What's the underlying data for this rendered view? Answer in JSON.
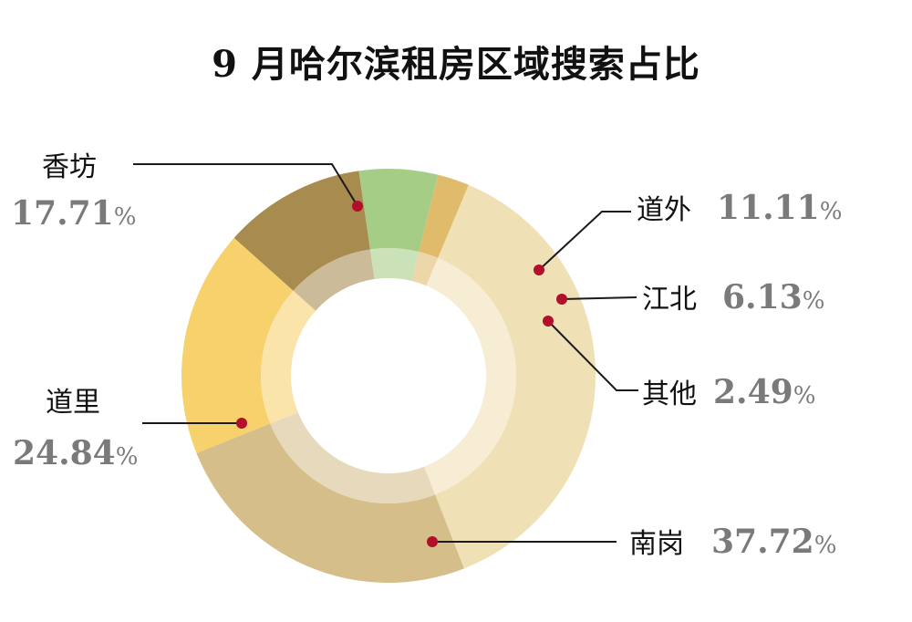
{
  "chart_data": {
    "type": "pie",
    "title": "9 月哈尔滨租房区域搜索占比",
    "unit": "%",
    "categories": [
      "香坊",
      "道外",
      "江北",
      "其他",
      "南岗",
      "道里"
    ],
    "values": [
      17.71,
      11.11,
      6.13,
      2.49,
      37.72,
      24.84
    ],
    "value_labels": [
      "17.71",
      "11.11",
      "6.13",
      "2.49",
      "37.72",
      "24.84"
    ],
    "colors": [
      "#F6D16C",
      "#A88B4E",
      "#A6CD86",
      "#E0BB6C",
      "#F0E0B5",
      "#D6BE8A"
    ],
    "legend": "none",
    "donut": true
  }
}
